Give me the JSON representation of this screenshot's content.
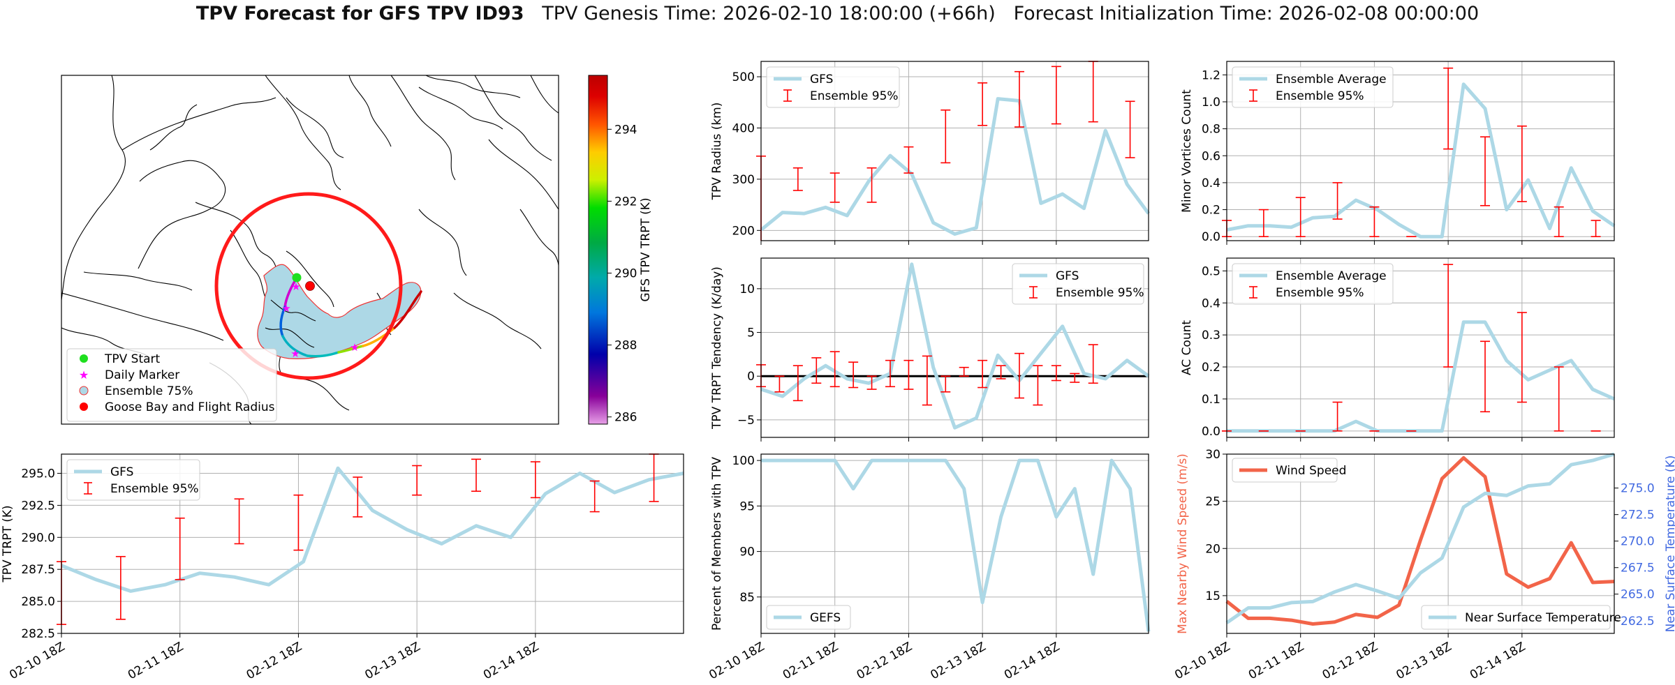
{
  "title": {
    "main": "TPV Forecast for GFS TPV ID93",
    "genesis": "TPV Genesis Time: 2026-02-10 18:00:00 (+66h)",
    "init": "Forecast Initialization Time: 2026-02-08 00:00:00"
  },
  "colors": {
    "gfs_line": "#add8e6",
    "error_bar": "#ff0000",
    "wind": "#f26449",
    "temperature_axis": "#4169e1",
    "zero_line": "#000000",
    "grid": "#b0b0b0"
  },
  "map": {
    "legend": [
      {
        "label": "TPV Start",
        "marker": "green-circle",
        "color": "#1fdf1f"
      },
      {
        "label": "Daily Marker",
        "marker": "magenta-star",
        "color": "#ff00ff"
      },
      {
        "label": "Ensemble 75%",
        "marker": "lightblue-circle",
        "color": "#add8e6"
      },
      {
        "label": "Goose Bay and Flight Radius",
        "marker": "red-circle",
        "color": "#ff0000"
      }
    ],
    "colorbar": {
      "label": "GFS TPV TRPT (K)",
      "ticks": [
        "294",
        "292",
        "290",
        "288",
        "286"
      ],
      "range": [
        285.8,
        295.5
      ],
      "colormap": "nipy_spectral"
    }
  },
  "x_tick_labels": [
    "02-10 18Z",
    "02-11 18Z",
    "02-12 18Z",
    "02-13 18Z",
    "02-14 18Z"
  ],
  "chart_data": [
    {
      "id": "radius",
      "type": "line",
      "ylabel": "TPV Radius (km)",
      "ylim": [
        180,
        530
      ],
      "yticks": [
        "200",
        "300",
        "400",
        "500"
      ],
      "xlim": [
        0,
        21
      ],
      "grid": true,
      "legend_placement": "upper-left",
      "series": [
        {
          "name": "GFS",
          "values": [
            201,
            235,
            233,
            245,
            229,
            296,
            346,
            310,
            215,
            193,
            205,
            457,
            453,
            253,
            271,
            243,
            395,
            290,
            233
          ]
        },
        {
          "name": "Ensemble 95%",
          "kind": "errorbar",
          "x": [
            0,
            2,
            4,
            6,
            8,
            10,
            12,
            14,
            16,
            18,
            20
          ],
          "low": [
            178,
            278,
            255,
            255,
            312,
            332,
            405,
            402,
            408,
            412,
            342
          ],
          "high": [
            345,
            322,
            312,
            322,
            363,
            435,
            488,
            510,
            520,
            530,
            452
          ]
        }
      ]
    },
    {
      "id": "minor",
      "type": "line",
      "ylabel": "Minor Vortices Count",
      "ylim": [
        -0.03,
        1.3
      ],
      "yticks": [
        "0.0",
        "0.2",
        "0.4",
        "0.6",
        "0.8",
        "1.0",
        "1.2"
      ],
      "xlim": [
        0,
        21
      ],
      "grid": true,
      "legend_placement": "upper-left",
      "series": [
        {
          "name": "Ensemble Average",
          "values": [
            0.05,
            0.08,
            0.08,
            0.07,
            0.14,
            0.15,
            0.27,
            0.2,
            0.09,
            0.0,
            0.0,
            1.13,
            0.95,
            0.2,
            0.42,
            0.06,
            0.51,
            0.19,
            0.08
          ]
        },
        {
          "name": "Ensemble 95%",
          "kind": "errorbar",
          "x": [
            0,
            2,
            4,
            6,
            8,
            10,
            12,
            14,
            16,
            18,
            20
          ],
          "low": [
            0.0,
            0.0,
            0.0,
            0.13,
            0.0,
            0.0,
            0.65,
            0.23,
            0.26,
            0.0,
            0.0
          ],
          "high": [
            0.12,
            0.2,
            0.29,
            0.4,
            0.22,
            0.0,
            1.25,
            0.74,
            0.82,
            0.22,
            0.12
          ]
        }
      ]
    },
    {
      "id": "tendency",
      "type": "line",
      "ylabel": "TPV TRPT Tendency (K/day)",
      "ylim": [
        -7,
        13.5
      ],
      "yticks": [
        "10",
        "5",
        "0",
        "−5"
      ],
      "xlim": [
        0,
        21
      ],
      "grid": true,
      "legend_placement": "upper-right",
      "zero_line": true,
      "series": [
        {
          "name": "GFS",
          "values": [
            -1.5,
            -2.3,
            -0.3,
            1.2,
            -0.3,
            -0.8,
            0.3,
            12.8,
            1.0,
            -5.9,
            -4.8,
            2.4,
            -0.5,
            2.6,
            5.7,
            0.3,
            -0.3,
            1.8,
            0.0
          ]
        },
        {
          "name": "Ensemble 95%",
          "kind": "errorbar",
          "x": [
            0,
            1,
            2,
            3,
            4,
            5,
            6,
            7,
            8,
            9,
            10,
            11,
            12,
            13,
            14,
            15,
            16,
            17,
            18
          ],
          "low": [
            -1.2,
            -1.8,
            -2.8,
            -0.8,
            -1.2,
            -1.3,
            -1.5,
            -1.2,
            -1.5,
            -3.3,
            -1.8,
            0.0,
            -1.3,
            -0.3,
            -2.5,
            -3.3,
            -0.5,
            -0.7,
            -0.8
          ],
          "high": [
            1.3,
            0.0,
            1.2,
            2.1,
            2.8,
            1.6,
            0.0,
            1.8,
            1.8,
            2.3,
            0.0,
            1.0,
            1.8,
            1.2,
            2.6,
            1.2,
            1.2,
            0.3,
            3.6
          ]
        }
      ]
    },
    {
      "id": "ac",
      "type": "line",
      "ylabel": "AC Count",
      "ylim": [
        -0.02,
        0.54
      ],
      "yticks": [
        "0.0",
        "0.1",
        "0.2",
        "0.3",
        "0.4",
        "0.5"
      ],
      "xlim": [
        0,
        21
      ],
      "grid": true,
      "legend_placement": "upper-left",
      "series": [
        {
          "name": "Ensemble Average",
          "values": [
            0.0,
            0.0,
            0.0,
            0.0,
            0.0,
            0.0,
            0.03,
            0.0,
            0.0,
            0.0,
            0.0,
            0.34,
            0.34,
            0.22,
            0.16,
            0.19,
            0.22,
            0.13,
            0.1
          ]
        },
        {
          "name": "Ensemble 95%",
          "kind": "errorbar",
          "x": [
            0,
            2,
            4,
            6,
            8,
            10,
            12,
            14,
            16,
            18,
            20
          ],
          "low": [
            0.0,
            0.0,
            0.0,
            0.0,
            0.0,
            0.0,
            0.2,
            0.06,
            0.09,
            0.0,
            0.0
          ],
          "high": [
            0.0,
            0.0,
            0.0,
            0.09,
            0.0,
            0.0,
            0.52,
            0.28,
            0.37,
            0.2,
            0.0
          ]
        }
      ]
    },
    {
      "id": "trpt",
      "type": "line",
      "ylabel": "TPV TRPT (K)",
      "ylim": [
        282.5,
        296.5
      ],
      "yticks": [
        "295.0",
        "292.5",
        "290.0",
        "287.5",
        "285.0",
        "282.5"
      ],
      "xlim": [
        0,
        21
      ],
      "grid": true,
      "legend_placement": "upper-left",
      "series": [
        {
          "name": "GFS",
          "values": [
            287.8,
            286.7,
            285.8,
            286.3,
            287.2,
            286.9,
            286.3,
            288.1,
            295.4,
            292.1,
            290.6,
            289.5,
            290.9,
            290.0,
            293.4,
            295.0,
            293.5,
            294.5,
            295.0
          ]
        },
        {
          "name": "Ensemble 95%",
          "kind": "errorbar",
          "x": [
            0,
            2,
            4,
            6,
            8,
            10,
            12,
            14,
            16,
            18,
            20
          ],
          "low": [
            283.2,
            283.6,
            286.7,
            289.5,
            289.0,
            291.6,
            293.3,
            293.6,
            293.1,
            292.0,
            292.8
          ],
          "high": [
            288.1,
            288.5,
            291.5,
            293.0,
            293.3,
            294.7,
            295.6,
            296.1,
            295.9,
            294.4,
            296.5
          ]
        }
      ]
    },
    {
      "id": "members",
      "type": "line",
      "ylabel": "Percent of Members with TPV",
      "ylim": [
        81,
        100.7
      ],
      "yticks": [
        "100",
        "95",
        "90",
        "85"
      ],
      "xlim": [
        0,
        21
      ],
      "grid": true,
      "legend_placement": "lower-left",
      "series": [
        {
          "name": "GEFS",
          "values": [
            100,
            100,
            100,
            100,
            100,
            96.9,
            100,
            100,
            100,
            100,
            100,
            96.9,
            84.4,
            93.8,
            100,
            100,
            93.8,
            96.9,
            87.5,
            100,
            96.9,
            81.2
          ]
        }
      ]
    },
    {
      "id": "wind",
      "type": "line",
      "ylabel": "Max Nearby Wind Speed (m/s)",
      "ylim": [
        11,
        30
      ],
      "yticks": [
        "30",
        "25",
        "20",
        "15"
      ],
      "xlim": [
        0,
        21
      ],
      "grid": true,
      "legend_placement": "upper-left",
      "y2label": "Near Surface Temperature (K)",
      "y2lim": [
        261.3,
        278.2
      ],
      "y2ticks": [
        "275.0",
        "272.5",
        "270.0",
        "267.5",
        "265.0",
        "262.5"
      ],
      "series": [
        {
          "name": "Wind Speed",
          "axis": "left",
          "values": [
            14.4,
            12.6,
            12.6,
            12.4,
            12.0,
            12.2,
            13.0,
            12.7,
            14.0,
            20.9,
            27.4,
            29.6,
            27.6,
            17.3,
            15.9,
            16.8,
            20.6,
            16.4,
            16.5
          ]
        },
        {
          "name": "Near Surface Temperature",
          "axis": "right",
          "values": [
            262.3,
            263.7,
            263.7,
            264.2,
            264.3,
            265.2,
            265.9,
            265.3,
            264.6,
            267.0,
            268.4,
            273.2,
            274.5,
            274.3,
            275.2,
            275.4,
            277.2,
            277.6,
            278.2
          ]
        }
      ]
    }
  ]
}
